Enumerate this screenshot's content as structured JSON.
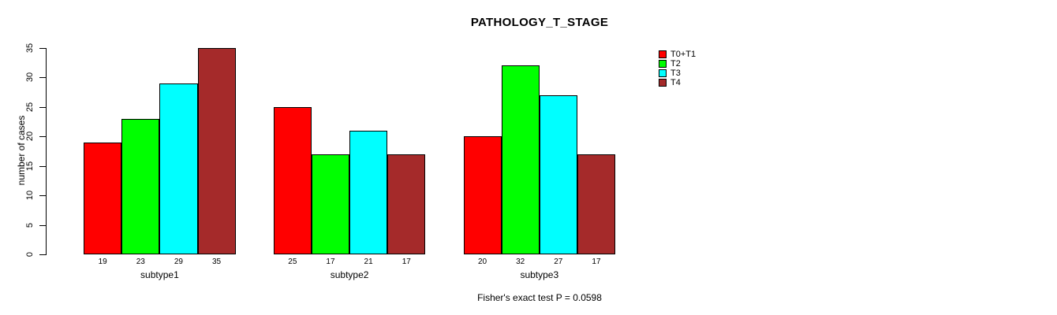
{
  "chart_data": {
    "type": "bar",
    "title": "PATHOLOGY_T_STAGE",
    "ylabel": "number of cases",
    "xlabel": "",
    "categories": [
      "subtype1",
      "subtype2",
      "subtype3"
    ],
    "series": [
      {
        "name": "T0+T1",
        "color": "#FF0000",
        "values": [
          19,
          25,
          20
        ]
      },
      {
        "name": "T2",
        "color": "#00FF00",
        "values": [
          23,
          17,
          32
        ]
      },
      {
        "name": "T3",
        "color": "#00FFFF",
        "values": [
          29,
          21,
          27
        ]
      },
      {
        "name": "T4",
        "color": "#A52A2A",
        "values": [
          35,
          17,
          17
        ]
      }
    ],
    "bar_value_labels": [
      [
        19,
        23,
        29,
        35
      ],
      [
        25,
        17,
        21,
        17
      ],
      [
        20,
        32,
        27,
        17
      ]
    ],
    "ylim": [
      0,
      35
    ],
    "yticks": [
      0,
      5,
      10,
      15,
      20,
      25,
      30,
      35
    ],
    "grid": false,
    "legend_position": "top-right",
    "bar_border_color": "#000000",
    "footnote": "Fisher's exact test P = 0.0598"
  }
}
